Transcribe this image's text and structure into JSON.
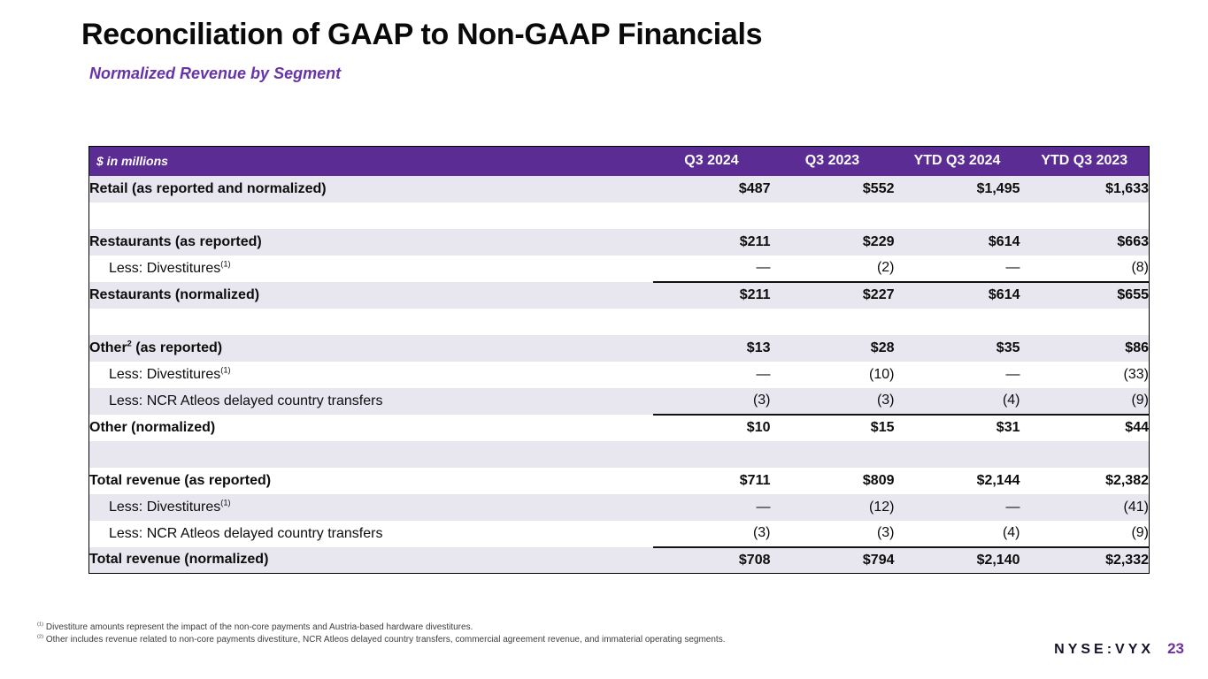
{
  "header": {
    "title": "Reconciliation of GAAP to Non-GAAP Financials",
    "subtitle": "Normalized Revenue by Segment"
  },
  "colors": {
    "table_header_bg": "#5B2C94",
    "row_shade": "#E8E7F0",
    "subtitle_purple": "#6633A8",
    "page_number_purple": "#7030A0"
  },
  "table": {
    "header": [
      "$ in millions",
      "Q3 2024",
      "Q3 2023",
      "YTD Q3 2024",
      "YTD Q3 2023"
    ],
    "rows": [
      {
        "label_pre": "Retail (as reported and normalized)",
        "label_sup": "",
        "label_post": "",
        "bold": true,
        "indent": false,
        "shaded": true,
        "sumline": false,
        "empty": false,
        "values": [
          "$487",
          "$552",
          "$1,495",
          "$1,633"
        ]
      },
      {
        "label_pre": "",
        "label_sup": "",
        "label_post": "",
        "bold": false,
        "indent": false,
        "shaded": false,
        "sumline": false,
        "empty": true,
        "values": [
          "",
          "",
          "",
          ""
        ]
      },
      {
        "label_pre": "Restaurants (as reported)",
        "label_sup": "",
        "label_post": "",
        "bold": true,
        "indent": false,
        "shaded": true,
        "sumline": false,
        "empty": false,
        "values": [
          "$211",
          "$229",
          "$614",
          "$663"
        ]
      },
      {
        "label_pre": "Less: Divestitures",
        "label_sup": "(1)",
        "label_post": "",
        "bold": false,
        "indent": true,
        "shaded": false,
        "sumline": true,
        "empty": false,
        "values": [
          "—",
          "(2)",
          "—",
          "(8)"
        ]
      },
      {
        "label_pre": "Restaurants (normalized)",
        "label_sup": "",
        "label_post": "",
        "bold": true,
        "indent": false,
        "shaded": true,
        "sumline": false,
        "empty": false,
        "values": [
          "$211",
          "$227",
          "$614",
          "$655"
        ]
      },
      {
        "label_pre": "",
        "label_sup": "",
        "label_post": "",
        "bold": false,
        "indent": false,
        "shaded": false,
        "sumline": false,
        "empty": true,
        "values": [
          "",
          "",
          "",
          ""
        ]
      },
      {
        "label_pre": "Other",
        "label_sup": "2",
        "label_post": " (as reported)",
        "bold": true,
        "indent": false,
        "shaded": true,
        "sumline": false,
        "empty": false,
        "values": [
          "$13",
          "$28",
          "$35",
          "$86"
        ]
      },
      {
        "label_pre": "Less: Divestitures",
        "label_sup": "(1)",
        "label_post": "",
        "bold": false,
        "indent": true,
        "shaded": false,
        "sumline": false,
        "empty": false,
        "values": [
          "—",
          "(10)",
          "—",
          "(33)"
        ]
      },
      {
        "label_pre": "Less: NCR Atleos delayed country transfers",
        "label_sup": "",
        "label_post": "",
        "bold": false,
        "indent": true,
        "shaded": true,
        "sumline": true,
        "empty": false,
        "values": [
          "(3)",
          "(3)",
          "(4)",
          "(9)"
        ]
      },
      {
        "label_pre": "Other (normalized)",
        "label_sup": "",
        "label_post": "",
        "bold": true,
        "indent": false,
        "shaded": false,
        "sumline": false,
        "empty": false,
        "values": [
          "$10",
          "$15",
          "$31",
          "$44"
        ]
      },
      {
        "label_pre": "",
        "label_sup": "",
        "label_post": "",
        "bold": false,
        "indent": false,
        "shaded": true,
        "sumline": false,
        "empty": true,
        "values": [
          "",
          "",
          "",
          ""
        ]
      },
      {
        "label_pre": "Total revenue (as reported)",
        "label_sup": "",
        "label_post": "",
        "bold": true,
        "indent": false,
        "shaded": false,
        "sumline": false,
        "empty": false,
        "values": [
          "$711",
          "$809",
          "$2,144",
          "$2,382"
        ]
      },
      {
        "label_pre": "Less: Divestitures",
        "label_sup": "(1)",
        "label_post": "",
        "bold": false,
        "indent": true,
        "shaded": true,
        "sumline": false,
        "empty": false,
        "values": [
          "—",
          "(12)",
          "—",
          "(41)"
        ]
      },
      {
        "label_pre": "Less: NCR Atleos delayed country transfers",
        "label_sup": "",
        "label_post": "",
        "bold": false,
        "indent": true,
        "shaded": false,
        "sumline": true,
        "empty": false,
        "values": [
          "(3)",
          "(3)",
          "(4)",
          "(9)"
        ]
      },
      {
        "label_pre": "Total revenue (normalized)",
        "label_sup": "",
        "label_post": "",
        "bold": true,
        "indent": false,
        "shaded": true,
        "sumline": false,
        "empty": false,
        "values": [
          "$708",
          "$794",
          "$2,140",
          "$2,332"
        ]
      }
    ]
  },
  "footnotes": [
    {
      "sup": "(1)",
      "text": "Divestiture amounts represent the impact of the non-core payments and Austria-based hardware divestitures."
    },
    {
      "sup": "(2)",
      "text": "Other includes revenue related to non-core payments divestiture, NCR Atleos delayed country transfers, commercial agreement revenue, and immaterial operating segments."
    }
  ],
  "footer": {
    "ticker": "NYSE:VYX",
    "page_number": "23"
  }
}
